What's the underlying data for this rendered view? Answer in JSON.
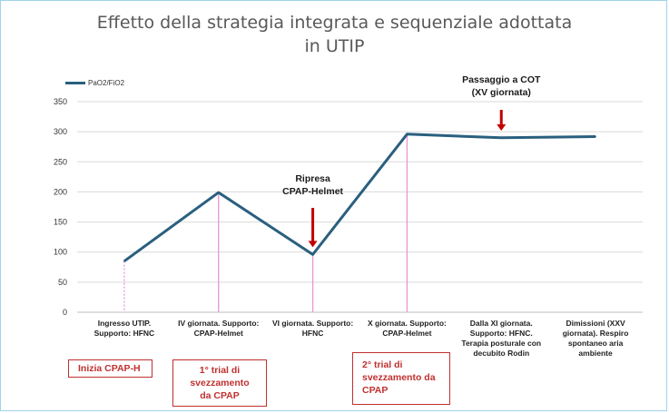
{
  "title_line1": "Effetto della strategia integrata e sequenziale adottata",
  "title_line2": "in UTIP",
  "chart_data": {
    "type": "line",
    "title": "Effetto della strategia integrata e sequenziale adottata in UTIP",
    "series": [
      {
        "name": "PaO2/FiO2",
        "color": "#2a5f7f",
        "values": [
          85,
          199,
          96,
          296,
          290,
          292
        ]
      }
    ],
    "categories": [
      [
        "Ingresso UTIP.",
        "Supporto: HFNC"
      ],
      [
        "IV giornata. Supporto:",
        "CPAP-Helmet"
      ],
      [
        "VI giornata. Supporto:",
        "HFNC"
      ],
      [
        "X giornata. Supporto:",
        "CPAP-Helmet"
      ],
      [
        "Dalla XI giornata.",
        "Supporto: HFNC.",
        "Terapia posturale con",
        "decubito Rodin"
      ],
      [
        "Dimissioni (XXV",
        "giornata). Respiro",
        "spontaneo aria",
        "ambiente"
      ]
    ],
    "ylim": [
      0,
      350
    ],
    "yticks": [
      0,
      50,
      100,
      150,
      200,
      250,
      300,
      350
    ],
    "grid": true,
    "legend_position": "top-left"
  },
  "annotations": [
    {
      "lines": [
        "Ripresa",
        "CPAP-Helmet"
      ],
      "category_index": 2
    },
    {
      "lines": [
        "Passaggio a COT",
        "(XV giornata)"
      ],
      "category_index": 4
    }
  ],
  "boxes": [
    {
      "lines": [
        "Inizia CPAP-H"
      ]
    },
    {
      "lines": [
        "1° trial di",
        "svezzamento",
        "da CPAP"
      ]
    },
    {
      "lines": [
        "2° trial di",
        "svezzamento da",
        "CPAP"
      ]
    }
  ],
  "colors": {
    "line": "#2a5f7f",
    "marker_lines": "#e89ad8",
    "arrow": "#c00000",
    "box_border": "#c0302f",
    "grid": "#d9d9d9"
  }
}
